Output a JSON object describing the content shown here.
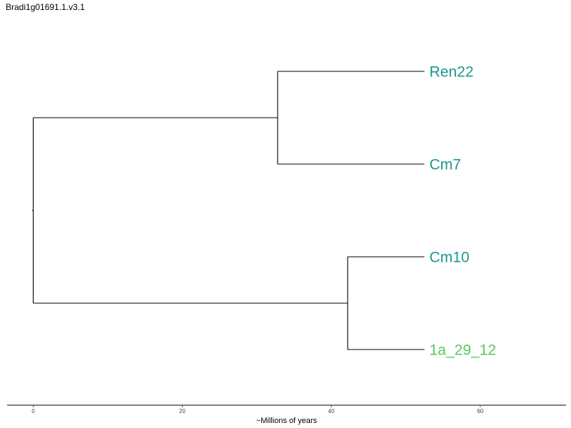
{
  "title": "Bradi1g01691.1.v3.1",
  "chart_data": {
    "type": "dendrogram",
    "xlabel": "~Millions of years",
    "xlim": [
      -3.5,
      71.5
    ],
    "xticks": [
      0,
      20,
      40,
      60
    ],
    "leaves": [
      {
        "label": "Ren22",
        "color": "#1a9a8a"
      },
      {
        "label": "Cm7",
        "color": "#1a9a8a"
      },
      {
        "label": "Cm10",
        "color": "#1a9a8a"
      },
      {
        "label": "1a_29_12",
        "color": "#5cc85c"
      }
    ],
    "tip_age": 52.5,
    "clades": [
      {
        "members": [
          "Ren22",
          "Cm7"
        ],
        "age": 32.8
      },
      {
        "members": [
          "Cm10",
          "1a_29_12"
        ],
        "age": 42.2
      }
    ],
    "root_age": 0
  }
}
